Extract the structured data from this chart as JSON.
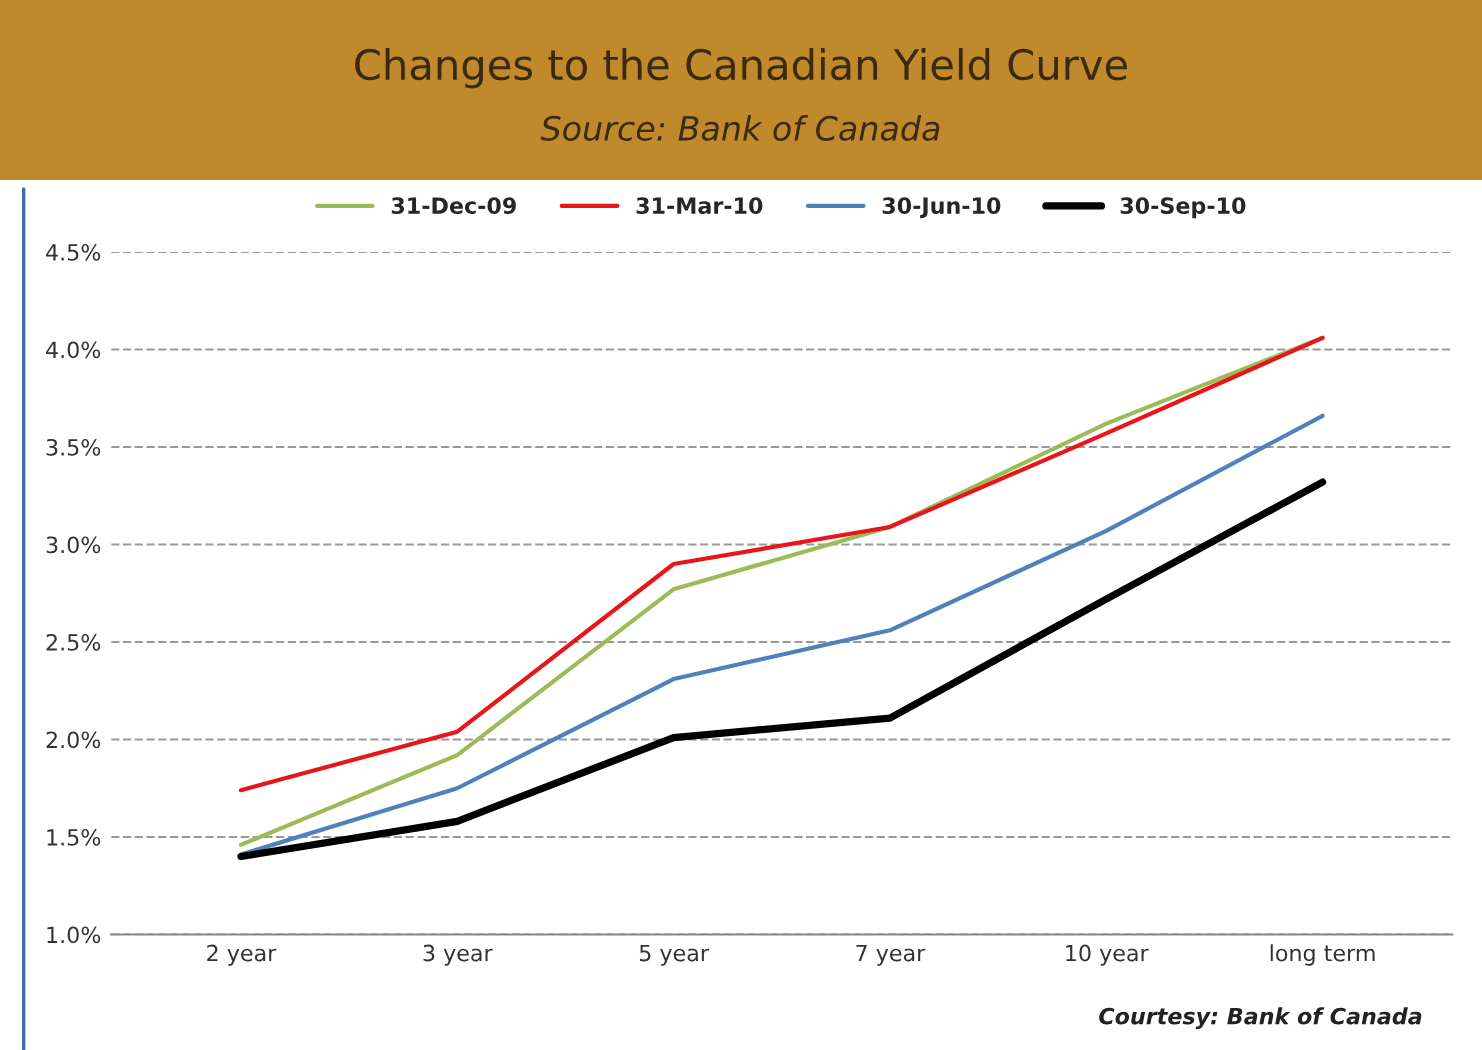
{
  "chart_data": {
    "type": "line",
    "title": "Changes to the Canadian Yield Curve",
    "subtitle": "Source: Bank of Canada",
    "categories": [
      "2 year",
      "3 year",
      "5 year",
      "7 year",
      "10 year",
      "long term"
    ],
    "series": [
      {
        "name": "31-Dec-09",
        "color": "#9bbb59",
        "values": [
          1.46,
          1.92,
          2.77,
          3.09,
          3.62,
          4.06
        ]
      },
      {
        "name": "31-Mar-10",
        "color": "#e8161b",
        "values": [
          1.74,
          2.04,
          2.9,
          3.09,
          3.57,
          4.06
        ]
      },
      {
        "name": "30-Jun-10",
        "color": "#4f81bd",
        "values": [
          1.41,
          1.75,
          2.31,
          2.56,
          3.07,
          3.66
        ]
      },
      {
        "name": "30-Sep-10",
        "color": "#000000",
        "values": [
          1.4,
          1.58,
          2.01,
          2.11,
          2.72,
          3.32
        ]
      }
    ],
    "ylim": [
      1.0,
      4.5
    ],
    "yticks": [
      {
        "value": 1.0,
        "label": "1.0%"
      },
      {
        "value": 1.5,
        "label": "1.5%"
      },
      {
        "value": 2.0,
        "label": "2.0%"
      },
      {
        "value": 2.5,
        "label": "2.5%"
      },
      {
        "value": 3.0,
        "label": "3.0%"
      },
      {
        "value": 3.5,
        "label": "3.5%"
      },
      {
        "value": 4.0,
        "label": "4.0%"
      },
      {
        "value": 4.5,
        "label": "4.5%"
      }
    ],
    "grid": "y",
    "legend": "top",
    "marker": "none",
    "line_style": "solid",
    "annotations": [
      "Courtesy: Bank of Canada"
    ]
  }
}
